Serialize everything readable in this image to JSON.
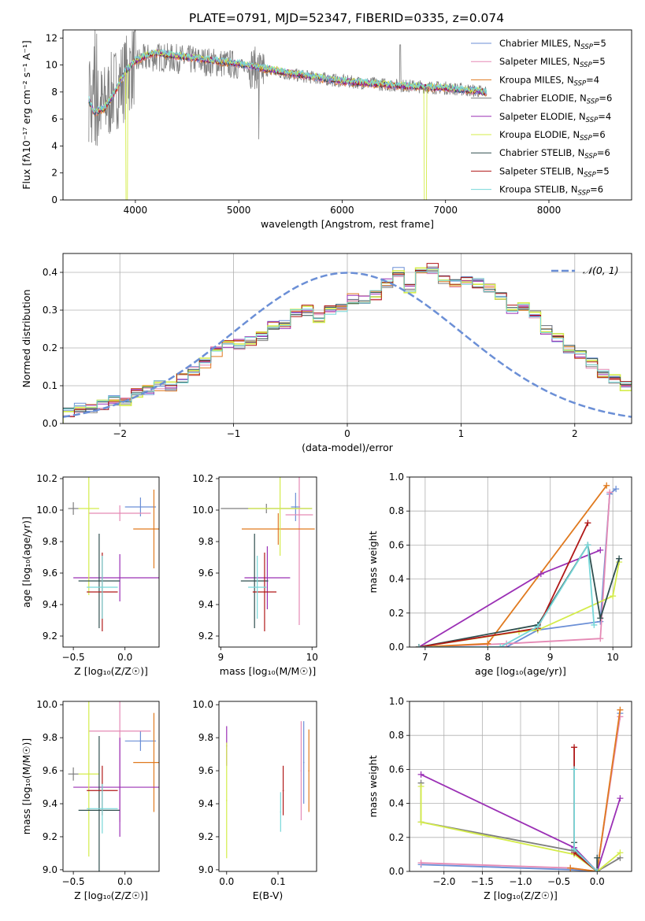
{
  "figure": {
    "title": "PLATE=0791, MJD=52347, FIBERID=0335, z=0.074"
  },
  "colors": {
    "chabrier_miles": "#6b8fd6",
    "salpeter_miles": "#e58ab5",
    "kroupa_miles": "#e07a1f",
    "chabrier_elodie": "#7f7f7f",
    "salpeter_elodie": "#9b30b5",
    "kroupa_elodie": "#d4ec4a",
    "chabrier_stelib": "#2f4f4f",
    "salpeter_stelib": "#b01818",
    "kroupa_stelib": "#76d7d9",
    "elodie_purple": "#9b30b5",
    "normal_curve": "#6b8fd6"
  },
  "chart_data": [
    {
      "id": "spectrum",
      "type": "line",
      "xlabel": "wavelength [Angstrom, rest frame]",
      "ylabel": "Flux [fλ10⁻¹⁷ erg cm⁻² s⁻¹ A⁻¹]",
      "xlim": [
        3300,
        8800
      ],
      "ylim": [
        0,
        12.6
      ],
      "xticks": [
        4000,
        5000,
        6000,
        7000,
        8000
      ],
      "yticks": [
        0,
        2,
        4,
        6,
        8,
        10,
        12
      ],
      "grid": false,
      "legend": "top-right",
      "observed": {
        "x": [
          3550,
          3600,
          3700,
          3800,
          3900,
          4000,
          4100,
          4200,
          4500,
          5000,
          5500,
          6000,
          6500,
          7000,
          7400
        ],
        "y": [
          7.5,
          6.8,
          7.0,
          8.2,
          9.0,
          10.2,
          10.5,
          10.6,
          10.4,
          10.0,
          9.3,
          8.8,
          8.5,
          8.3,
          8.0
        ]
      },
      "model": {
        "x": [
          3550,
          3600,
          3700,
          3800,
          3900,
          4000,
          4100,
          4200,
          4500,
          5000,
          5500,
          6000,
          6500,
          7000,
          7400
        ],
        "y": [
          7.4,
          6.5,
          6.8,
          8.0,
          9.5,
          10.3,
          10.7,
          10.9,
          10.6,
          10.1,
          9.4,
          8.8,
          8.5,
          8.3,
          8.0
        ]
      },
      "legend_entries": [
        {
          "label": "Chabrier MILES, N",
          "sub": "SSP",
          "tail": "=5"
        },
        {
          "label": "Salpeter MILES, N",
          "sub": "SSP",
          "tail": "=5"
        },
        {
          "label": "Kroupa MILES, N",
          "sub": "SSP",
          "tail": "=4"
        },
        {
          "label": "Chabrier ELODIE, N",
          "sub": "SSP",
          "tail": "=6"
        },
        {
          "label": "Salpeter ELODIE, N",
          "sub": "SSP",
          "tail": "=4"
        },
        {
          "label": "Kroupa ELODIE, N",
          "sub": "SSP",
          "tail": "=6"
        },
        {
          "label": "Chabrier STELIB, N",
          "sub": "SSP",
          "tail": "=6"
        },
        {
          "label": "Salpeter STELIB, N",
          "sub": "SSP",
          "tail": "=5"
        },
        {
          "label": "Kroupa STELIB, N",
          "sub": "SSP",
          "tail": "=6"
        }
      ]
    },
    {
      "id": "residuals",
      "type": "area",
      "xlabel": "(data-model)/error",
      "ylabel": "Normed distribution",
      "xlim": [
        -2.5,
        2.5
      ],
      "ylim": [
        0,
        0.45
      ],
      "xticks": [
        -2,
        -1,
        0,
        1,
        2
      ],
      "xticklabels": [
        "−2",
        "−1",
        "0",
        "1",
        "2"
      ],
      "yticks": [
        0.0,
        0.1,
        0.2,
        0.3,
        0.4
      ],
      "yticklabels": [
        "0.0",
        "0.1",
        "0.2",
        "0.3",
        "0.4"
      ],
      "grid": true,
      "legend": "top-right",
      "normal_label": "𝒩(0, 1)",
      "bin_edges_start": -2.5,
      "bin_width": 0.1,
      "base_hist": [
        0.03,
        0.04,
        0.04,
        0.05,
        0.06,
        0.06,
        0.08,
        0.09,
        0.1,
        0.1,
        0.12,
        0.14,
        0.16,
        0.19,
        0.21,
        0.21,
        0.22,
        0.23,
        0.26,
        0.26,
        0.29,
        0.3,
        0.28,
        0.3,
        0.31,
        0.33,
        0.33,
        0.34,
        0.37,
        0.4,
        0.36,
        0.4,
        0.41,
        0.38,
        0.37,
        0.38,
        0.37,
        0.36,
        0.34,
        0.3,
        0.31,
        0.29,
        0.25,
        0.23,
        0.2,
        0.18,
        0.16,
        0.13,
        0.12,
        0.1,
        0.1,
        0.09,
        0.08,
        0.08,
        0.07,
        0.06,
        0.05,
        0.05,
        0.05,
        0.05
      ]
    },
    {
      "id": "age_vs_Z",
      "type": "scatter",
      "xlabel": "Z [log₁₀(Z/Z☉)]",
      "ylabel": "age  [log₁₀(age/yr)]",
      "xlim": [
        -0.6,
        0.33
      ],
      "ylim": [
        9.13,
        10.21
      ],
      "xticks": [
        -0.5,
        0.0
      ],
      "xticklabels": [
        "−0.5",
        "0.0"
      ],
      "yticks": [
        9.2,
        9.4,
        9.6,
        9.8,
        10.0,
        10.2
      ],
      "yticklabels": [
        "9.2",
        "9.4",
        "9.6",
        "9.8",
        "10.0",
        "10.2"
      ],
      "points": [
        {
          "c": "chabrier_miles",
          "x": 0.15,
          "y": 10.02,
          "xe": 0.15,
          "ye": 0.06
        },
        {
          "c": "salpeter_miles",
          "x": -0.05,
          "y": 9.98,
          "xe": 0.3,
          "ye": 0.05
        },
        {
          "c": "kroupa_miles",
          "x": 0.28,
          "y": 9.88,
          "xe": 0.2,
          "ye": 0.25
        },
        {
          "c": "chabrier_elodie",
          "x": -0.5,
          "y": 10.01,
          "xe": 0.05,
          "ye": 0.04
        },
        {
          "c": "salpeter_elodie",
          "x": -0.05,
          "y": 9.57,
          "xe": 0.45,
          "ye": 0.15
        },
        {
          "c": "kroupa_elodie",
          "x": -0.35,
          "y": 10.01,
          "xe": 0.1,
          "ye": 0.55
        },
        {
          "c": "chabrier_stelib",
          "x": -0.25,
          "y": 9.55,
          "xe": 0.2,
          "ye": 0.3
        },
        {
          "c": "salpeter_stelib",
          "x": -0.22,
          "y": 9.48,
          "xe": 0.15,
          "ye": 0.25
        },
        {
          "c": "kroupa_stelib",
          "x": -0.22,
          "y": 9.51,
          "xe": 0.15,
          "ye": 0.2
        }
      ]
    },
    {
      "id": "age_vs_mass",
      "type": "scatter",
      "xlabel": "mass [log₁₀(M/M☉)]",
      "ylabel": "",
      "xlim": [
        8.98,
        10.05
      ],
      "ylim": [
        9.13,
        10.21
      ],
      "xticks": [
        9,
        10
      ],
      "xticklabels": [
        "9",
        "10"
      ],
      "yticks": [
        9.2,
        9.4,
        9.6,
        9.8,
        10.0,
        10.2
      ],
      "yticklabels": [
        "9.2",
        "9.4",
        "9.6",
        "9.8",
        "10.0",
        "10.2"
      ],
      "points": [
        {
          "c": "chabrier_miles",
          "x": 9.82,
          "y": 10.02,
          "xe": 0.05,
          "ye": 0.09
        },
        {
          "c": "salpeter_miles",
          "x": 9.86,
          "y": 9.97,
          "xe": 0.15,
          "ye": 0.7
        },
        {
          "c": "kroupa_miles",
          "x": 9.63,
          "y": 9.88,
          "xe": 0.4,
          "ye": 0.1
        },
        {
          "c": "chabrier_elodie",
          "x": 9.5,
          "y": 10.01,
          "xe": 0.5,
          "ye": 0.03
        },
        {
          "c": "salpeter_elodie",
          "x": 9.51,
          "y": 9.57,
          "xe": 0.25,
          "ye": 0.2
        },
        {
          "c": "kroupa_elodie",
          "x": 9.65,
          "y": 10.01,
          "xe": 0.35,
          "ye": 0.3
        },
        {
          "c": "chabrier_stelib",
          "x": 9.37,
          "y": 9.55,
          "xe": 0.15,
          "ye": 0.3
        },
        {
          "c": "salpeter_stelib",
          "x": 9.48,
          "y": 9.48,
          "xe": 0.13,
          "ye": 0.25
        },
        {
          "c": "kroupa_stelib",
          "x": 9.4,
          "y": 9.51,
          "xe": 0.1,
          "ye": 0.2
        }
      ]
    },
    {
      "id": "mass_vs_Z",
      "type": "scatter",
      "xlabel": "Z [log₁₀(Z/Z☉)]",
      "ylabel": "mass [log₁₀(M/M☉)]",
      "xlim": [
        -0.6,
        0.33
      ],
      "ylim": [
        8.99,
        10.02
      ],
      "xticks": [
        -0.5,
        0.0
      ],
      "xticklabels": [
        "−0.5",
        "0.0"
      ],
      "yticks": [
        9.0,
        9.2,
        9.4,
        9.6,
        9.8,
        10.0
      ],
      "yticklabels": [
        "9.0",
        "9.2",
        "9.4",
        "9.6",
        "9.8",
        "10.0"
      ],
      "points": [
        {
          "c": "chabrier_miles",
          "x": 0.15,
          "y": 9.78,
          "xe": 0.15,
          "ye": 0.06
        },
        {
          "c": "salpeter_miles",
          "x": -0.05,
          "y": 9.84,
          "xe": 0.3,
          "ye": 0.55
        },
        {
          "c": "kroupa_miles",
          "x": 0.28,
          "y": 9.65,
          "xe": 0.2,
          "ye": 0.3
        },
        {
          "c": "chabrier_elodie",
          "x": -0.5,
          "y": 9.58,
          "xe": 0.05,
          "ye": 0.04
        },
        {
          "c": "salpeter_elodie",
          "x": -0.05,
          "y": 9.5,
          "xe": 0.45,
          "ye": 0.3
        },
        {
          "c": "kroupa_elodie",
          "x": -0.35,
          "y": 9.58,
          "xe": 0.1,
          "ye": 0.5
        },
        {
          "c": "chabrier_stelib",
          "x": -0.25,
          "y": 9.36,
          "xe": 0.2,
          "ye": 0.45
        },
        {
          "c": "salpeter_stelib",
          "x": -0.22,
          "y": 9.48,
          "xe": 0.15,
          "ye": 0.15
        },
        {
          "c": "kroupa_stelib",
          "x": -0.22,
          "y": 9.37,
          "xe": 0.15,
          "ye": 0.15
        }
      ]
    },
    {
      "id": "mass_vs_EBV",
      "type": "scatter",
      "xlabel": "E(B-V)",
      "ylabel": "",
      "xlim": [
        -0.015,
        0.175
      ],
      "ylim": [
        8.99,
        10.02
      ],
      "xticks": [
        0.0,
        0.1
      ],
      "xticklabels": [
        "0.0",
        "0.1"
      ],
      "yticks": [
        9.0,
        9.2,
        9.4,
        9.6,
        9.8,
        10.0
      ],
      "yticklabels": [
        "9.0",
        "9.2",
        "9.4",
        "9.6",
        "9.8",
        "10.0"
      ],
      "points": [
        {
          "c": "salpeter_elodie",
          "x": 0.0,
          "y": 9.75,
          "xe": 0.0,
          "ye": 0.12
        },
        {
          "c": "kroupa_elodie",
          "x": 0.0,
          "y": 9.42,
          "xe": 0.0,
          "ye": 0.35
        },
        {
          "c": "kroupa_stelib",
          "x": 0.105,
          "y": 9.35,
          "xe": 0.0,
          "ye": 0.12
        },
        {
          "c": "salpeter_stelib",
          "x": 0.11,
          "y": 9.48,
          "xe": 0.0,
          "ye": 0.15
        },
        {
          "c": "chabrier_miles",
          "x": 0.15,
          "y": 9.65,
          "xe": 0.0,
          "ye": 0.25
        },
        {
          "c": "salpeter_miles",
          "x": 0.145,
          "y": 9.6,
          "xe": 0.0,
          "ye": 0.3
        },
        {
          "c": "kroupa_miles",
          "x": 0.16,
          "y": 9.6,
          "xe": 0.0,
          "ye": 0.25
        }
      ]
    },
    {
      "id": "weight_vs_age",
      "type": "line",
      "xlabel": "age  [log₁₀(age/yr)]",
      "ylabel": "mass weight",
      "xlim": [
        6.75,
        10.3
      ],
      "ylim": [
        0,
        1.0
      ],
      "xticks": [
        7,
        8,
        9,
        10
      ],
      "xticklabels": [
        "7",
        "8",
        "9",
        "10"
      ],
      "yticks": [
        0.0,
        0.2,
        0.4,
        0.6,
        0.8,
        1.0
      ],
      "yticklabels": [
        "0.0",
        "0.2",
        "0.4",
        "0.6",
        "0.8",
        "1.0"
      ],
      "grid": true,
      "series": [
        {
          "c": "chabrier_miles",
          "x": [
            6.9,
            8.3,
            8.8,
            9.8,
            9.95,
            10.05
          ],
          "y": [
            0.0,
            0.0,
            0.1,
            0.15,
            0.9,
            0.93
          ]
        },
        {
          "c": "salpeter_miles",
          "x": [
            6.9,
            8.3,
            9.8,
            9.95
          ],
          "y": [
            0.0,
            0.02,
            0.05,
            0.91
          ]
        },
        {
          "c": "kroupa_miles",
          "x": [
            6.9,
            8.0,
            9.9
          ],
          "y": [
            0.0,
            0.02,
            0.95
          ]
        },
        {
          "c": "salpeter_elodie",
          "x": [
            6.9,
            8.85,
            9.8
          ],
          "y": [
            0.0,
            0.43,
            0.57
          ]
        },
        {
          "c": "kroupa_elodie",
          "x": [
            6.9,
            8.5,
            8.8,
            10.0,
            10.1
          ],
          "y": [
            0.0,
            0.09,
            0.1,
            0.3,
            0.5
          ]
        },
        {
          "c": "chabrier_stelib",
          "x": [
            6.9,
            8.8,
            9.6,
            9.8,
            10.1
          ],
          "y": [
            0.0,
            0.13,
            0.6,
            0.17,
            0.52
          ]
        },
        {
          "c": "salpeter_stelib",
          "x": [
            6.9,
            8.8,
            9.6
          ],
          "y": [
            0.0,
            0.11,
            0.73
          ]
        },
        {
          "c": "kroupa_stelib",
          "x": [
            6.9,
            8.2,
            8.8,
            9.6,
            9.7
          ],
          "y": [
            0.0,
            0.0,
            0.12,
            0.6,
            0.13
          ]
        }
      ]
    },
    {
      "id": "weight_vs_Z",
      "type": "line",
      "xlabel": "Z [log₁₀(Z/Z☉)]",
      "ylabel": "mass weight",
      "xlim": [
        -2.45,
        0.45
      ],
      "ylim": [
        0,
        1.0
      ],
      "xticks": [
        -2.0,
        -1.5,
        -1.0,
        -0.5,
        0.0
      ],
      "xticklabels": [
        "−2.0",
        "−1.5",
        "−1.0",
        "−0.5",
        "0.0"
      ],
      "yticks": [
        0.0,
        0.2,
        0.4,
        0.6,
        0.8,
        1.0
      ],
      "yticklabels": [
        "0.0",
        "0.2",
        "0.4",
        "0.6",
        "0.8",
        "1.0"
      ],
      "grid": true,
      "series": [
        {
          "c": "chabrier_miles",
          "x": [
            -2.3,
            -0.35,
            0.0,
            0.3
          ],
          "y": [
            0.04,
            0.01,
            0.0,
            0.93
          ]
        },
        {
          "c": "salpeter_miles",
          "x": [
            -2.3,
            -0.35,
            0.0,
            0.3
          ],
          "y": [
            0.05,
            0.02,
            0.0,
            0.91
          ]
        },
        {
          "c": "kroupa_miles",
          "x": [
            -0.35,
            0.0,
            0.3
          ],
          "y": [
            0.02,
            0.0,
            0.95
          ]
        },
        {
          "c": "chabrier_elodie",
          "x": [
            -2.3,
            -2.3,
            -0.3,
            0.0,
            0.3
          ],
          "y": [
            0.52,
            0.29,
            0.12,
            0.0,
            0.08
          ]
        },
        {
          "c": "salpeter_elodie",
          "x": [
            -2.3,
            -0.3,
            0.0,
            0.3
          ],
          "y": [
            0.57,
            0.14,
            0.0,
            0.43
          ]
        },
        {
          "c": "kroupa_elodie",
          "x": [
            -2.3,
            -2.3,
            -0.3,
            0.0,
            0.3
          ],
          "y": [
            0.5,
            0.29,
            0.1,
            0.0,
            0.11
          ]
        },
        {
          "c": "chabrier_stelib",
          "x": [
            -0.3,
            -0.3,
            0.0,
            0.0
          ],
          "y": [
            0.17,
            0.13,
            0.0,
            0.08
          ]
        },
        {
          "c": "salpeter_stelib",
          "x": [
            -0.3,
            -0.3,
            0.0
          ],
          "y": [
            0.73,
            0.11,
            0.0
          ]
        },
        {
          "c": "kroupa_stelib",
          "x": [
            -0.3,
            -0.3,
            0.0
          ],
          "y": [
            0.6,
            0.13,
            0.0
          ]
        }
      ]
    }
  ]
}
